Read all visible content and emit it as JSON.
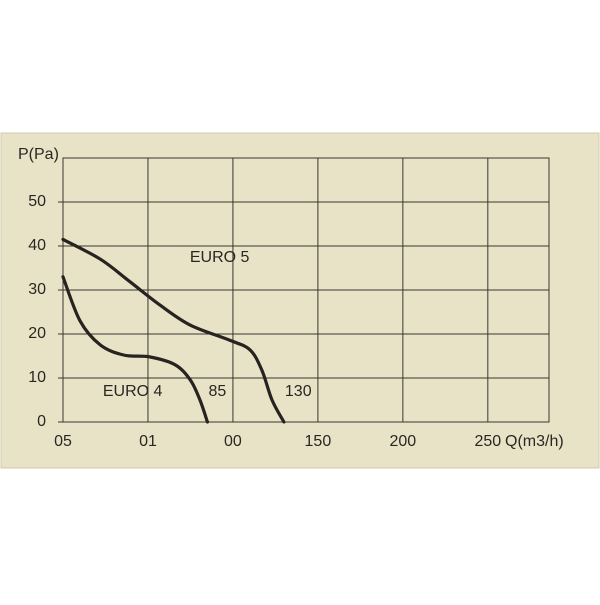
{
  "chart_data": {
    "type": "line",
    "y_label": "P(Pa)",
    "x_label": "Q(m3/h)",
    "xlim": [
      0,
      286
    ],
    "ylim": [
      0,
      60
    ],
    "xticks": [
      {
        "value": 0,
        "label": "05"
      },
      {
        "value": 50,
        "label": "01"
      },
      {
        "value": 100,
        "label": "00"
      },
      150,
      200,
      250
    ],
    "yticks": [
      0,
      10,
      20,
      30,
      40,
      50
    ],
    "grid": true,
    "series": [
      {
        "name": "EURO 5",
        "color": "#262320",
        "x": [
          0,
          22,
          39,
          57,
          75,
          98,
          110,
          117,
          123,
          130
        ],
        "values": [
          41.5,
          37,
          32,
          26.6,
          22,
          18.6,
          16.4,
          11.8,
          5,
          0
        ]
      },
      {
        "name": "EURO 4",
        "color": "#262320",
        "x": [
          0,
          10,
          22,
          36,
          51,
          66,
          75,
          80.6,
          85
        ],
        "values": [
          33,
          23,
          17.5,
          15.2,
          14.8,
          13,
          9.5,
          5,
          0
        ]
      }
    ],
    "annotations": [
      "130",
      "85"
    ]
  }
}
